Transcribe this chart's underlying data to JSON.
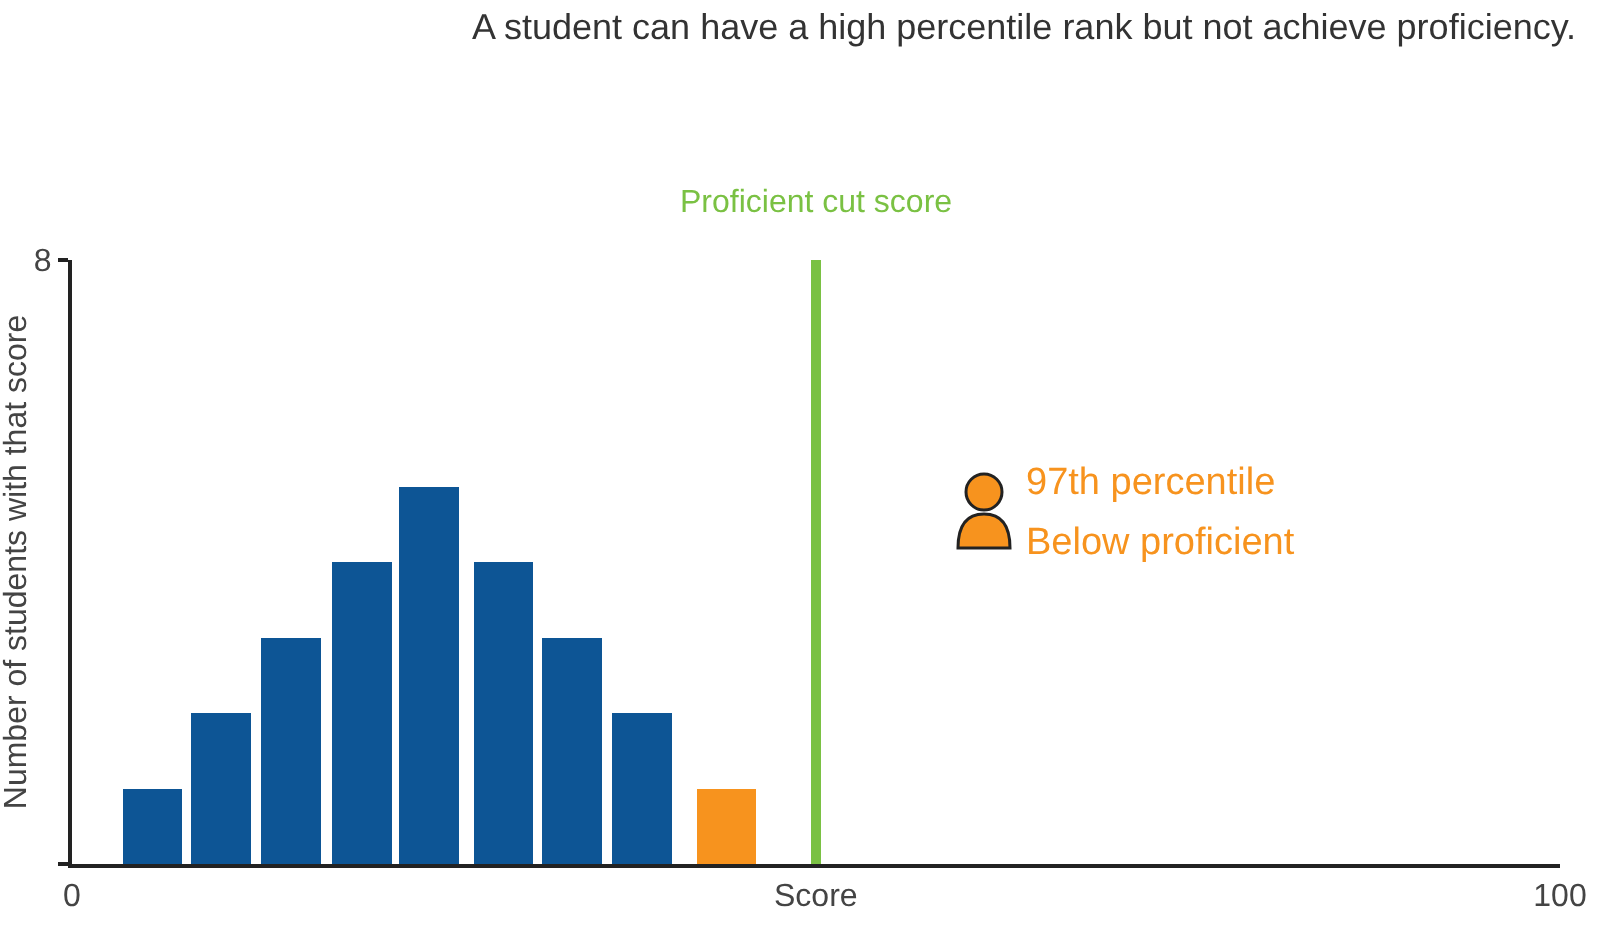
{
  "chart_data": {
    "type": "bar",
    "title": "A student can have a high percentile rank but not achieve proficiency.",
    "xlabel": "Score",
    "ylabel": "Number of students with that score",
    "x": [
      5.4,
      10,
      14.7,
      19.5,
      24,
      29,
      33.6,
      38.3,
      44
    ],
    "values": [
      1,
      2,
      3,
      4,
      5,
      4,
      3,
      2,
      1
    ],
    "colors": [
      "#0d5595",
      "#0d5595",
      "#0d5595",
      "#0d5595",
      "#0d5595",
      "#0d5595",
      "#0d5595",
      "#0d5595",
      "#f7931e"
    ],
    "xlim": [
      0,
      100
    ],
    "xticks": [
      0,
      100
    ],
    "ylim": [
      0,
      8
    ],
    "yticks": [
      {
        "value": 0,
        "label": null
      },
      8
    ],
    "ref_lines": [
      {
        "axis": "x",
        "value": 50,
        "label": "Proficient cut score",
        "color": "#7ac143"
      }
    ],
    "annotations": [
      "97th percentile",
      "Below proficient"
    ]
  }
}
